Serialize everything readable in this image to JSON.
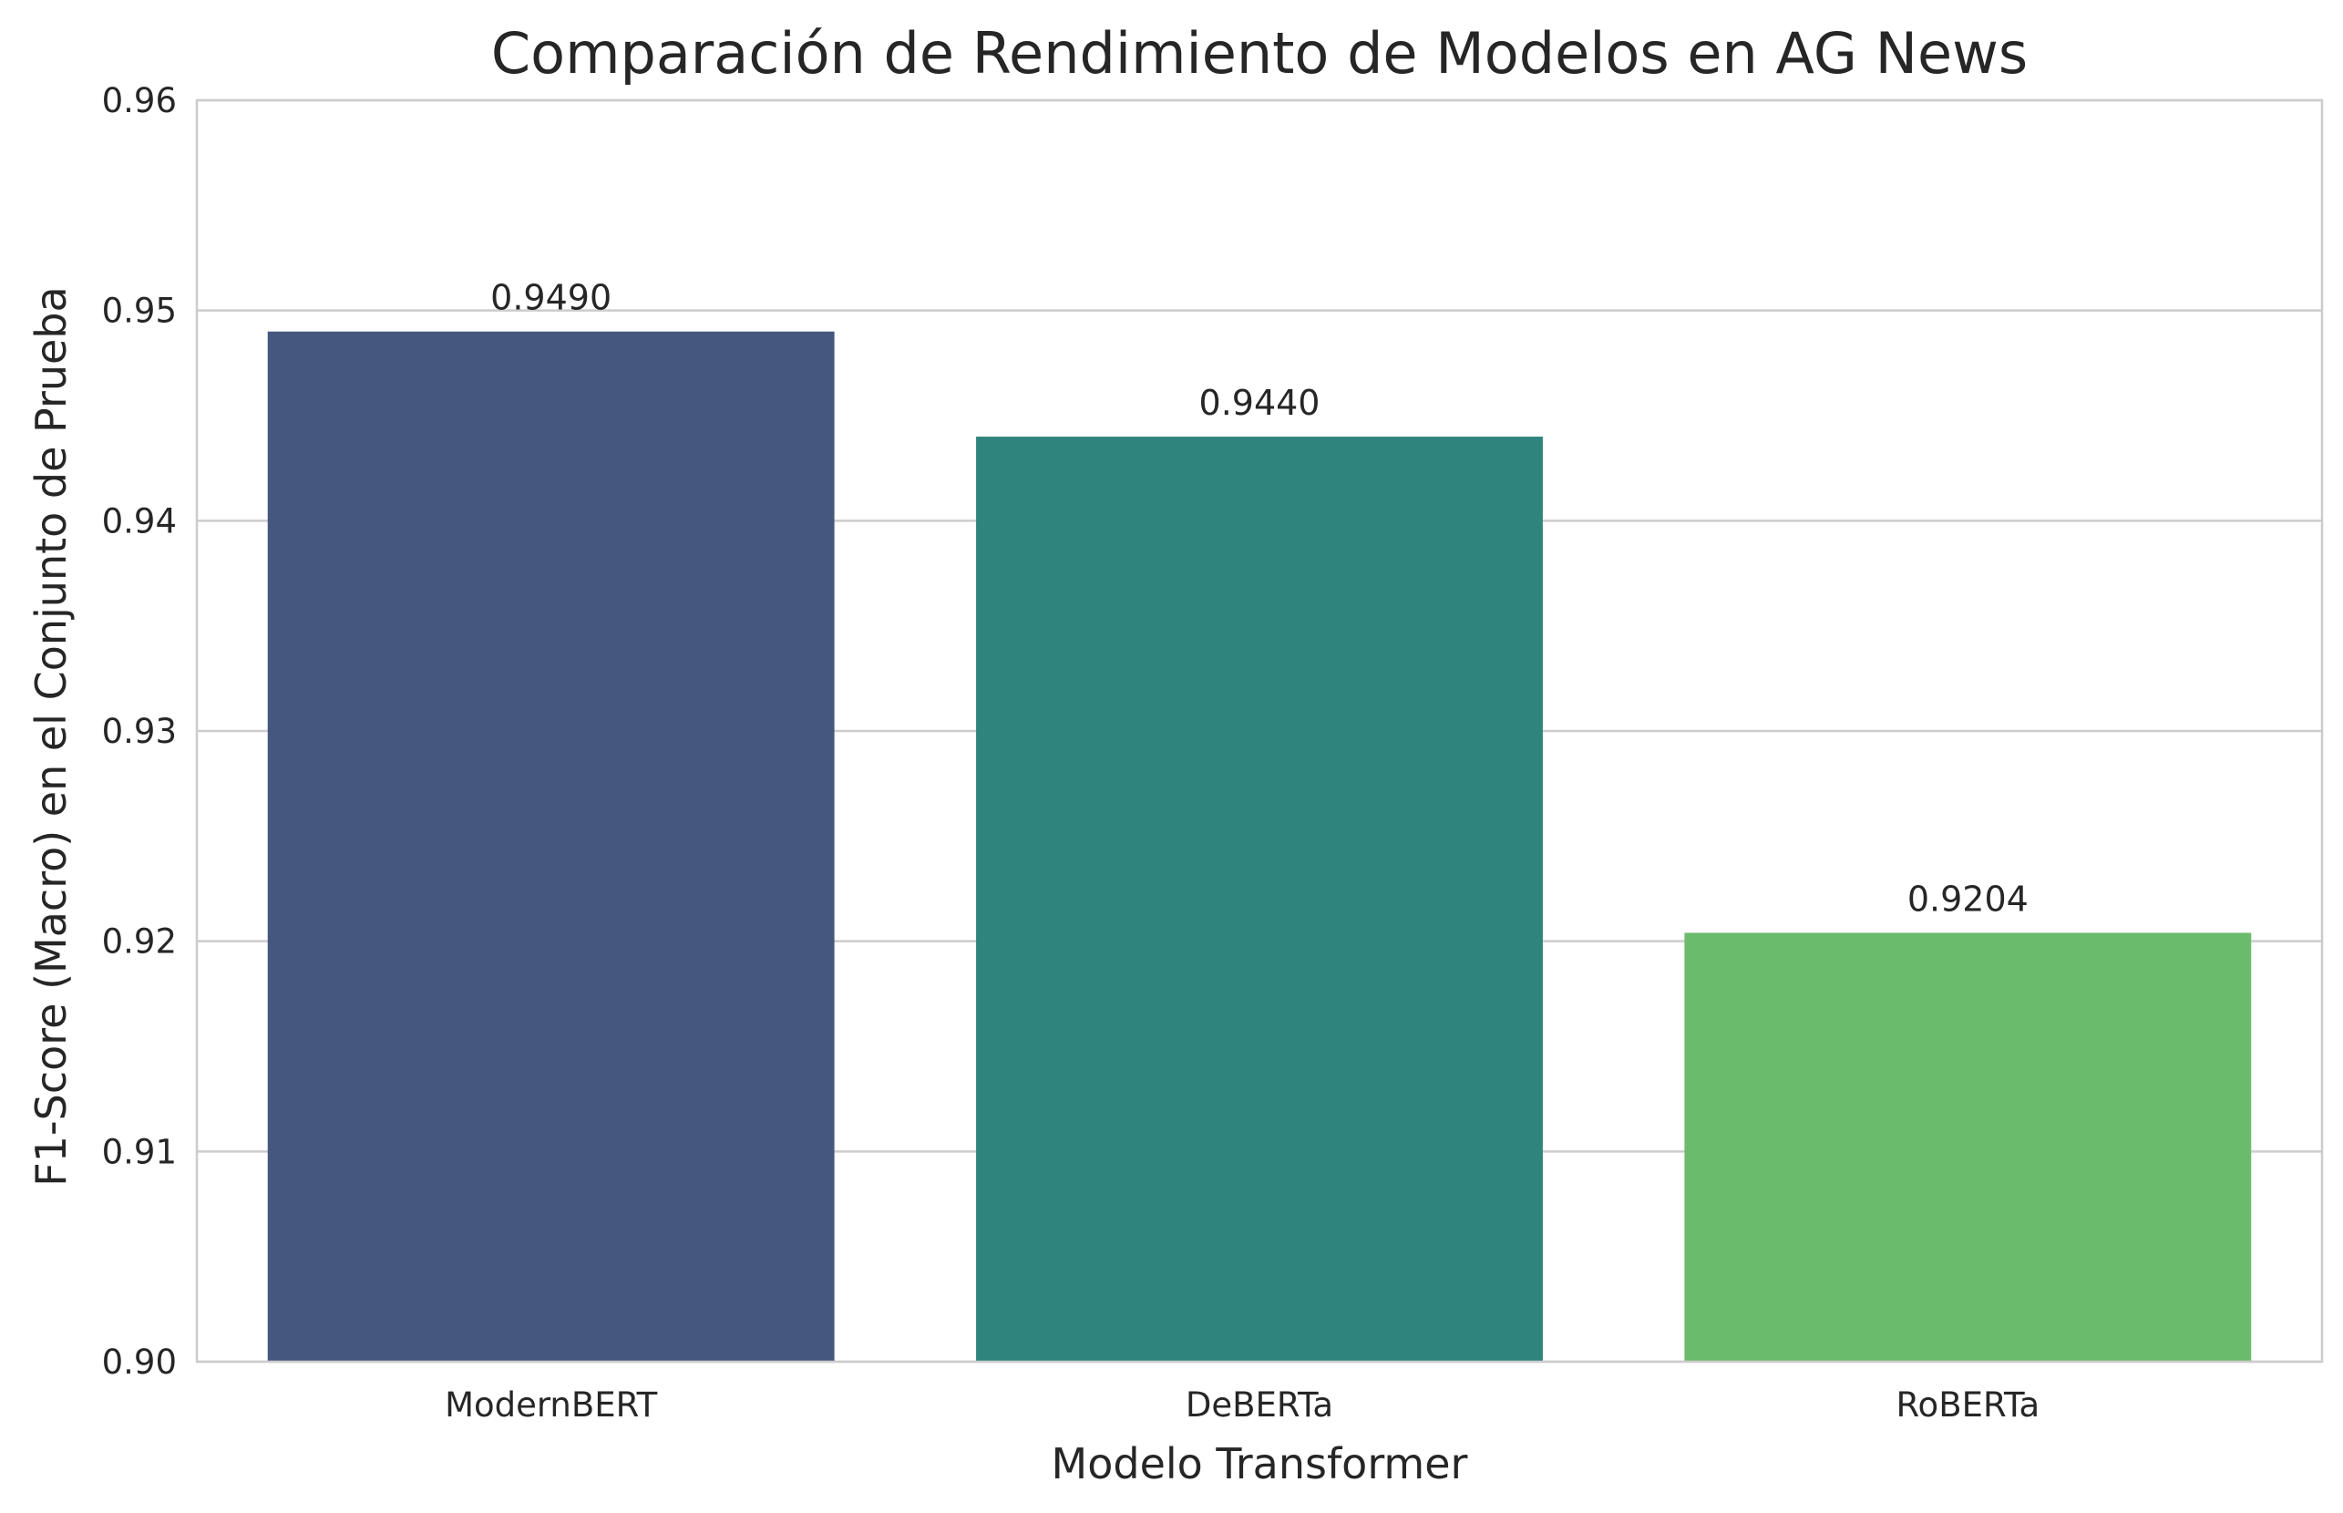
{
  "chart_data": {
    "type": "bar",
    "title": "Comparación de Rendimiento de Modelos en AG News",
    "xlabel": "Modelo Transformer",
    "ylabel": "F1-Score (Macro) en el Conjunto de Prueba",
    "categories": [
      "ModernBERT",
      "DeBERTa",
      "RoBERTa"
    ],
    "values": [
      0.949,
      0.944,
      0.9204
    ],
    "data_labels": [
      "0.9490",
      "0.9440",
      "0.9204"
    ],
    "colors": [
      "#46577f",
      "#2f847d",
      "#6bbb6c"
    ],
    "ylim": [
      0.9,
      0.96
    ],
    "yticks": [
      0.9,
      0.91,
      0.92,
      0.93,
      0.94,
      0.95,
      0.96
    ],
    "ytick_labels": [
      "0.90",
      "0.91",
      "0.92",
      "0.93",
      "0.94",
      "0.95",
      "0.96"
    ],
    "grid": "horizontal",
    "legend": "none"
  }
}
